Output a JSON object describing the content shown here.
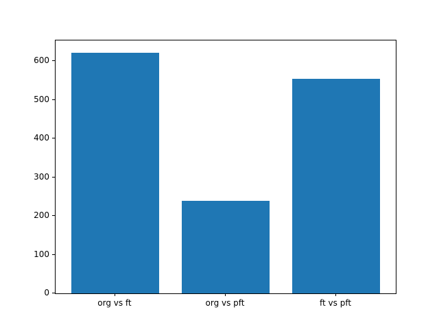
{
  "chart_data": {
    "type": "bar",
    "categories": [
      "org vs ft",
      "org vs pft",
      "ft vs pft"
    ],
    "values": [
      622,
      240,
      554
    ],
    "title": "",
    "xlabel": "",
    "ylabel": "",
    "ylim": [
      0,
      654
    ],
    "xlim": [
      -0.54,
      2.54
    ],
    "yticks": [
      0,
      100,
      200,
      300,
      400,
      500,
      600
    ],
    "bar_color": "#1f77b4",
    "bar_width_fraction": 0.8,
    "grid": false,
    "legend": null,
    "background_color": "#ffffff",
    "axis_color": "#000000"
  }
}
